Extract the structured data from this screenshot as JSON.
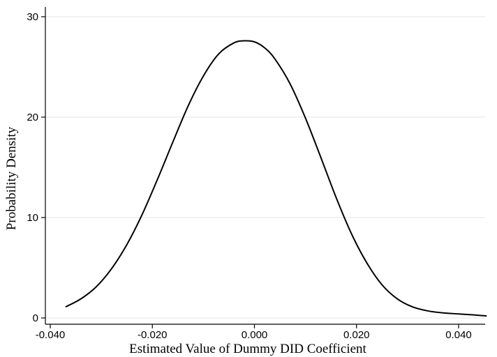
{
  "chart_data": {
    "type": "line",
    "title": "",
    "xlabel": "Estimated Value of Dummy DID Coefficient",
    "ylabel": "Probability Density",
    "xlim": [
      -0.04,
      0.046
    ],
    "ylim": [
      0,
      30
    ],
    "x_ticks": [
      -0.04,
      -0.02,
      0.0,
      0.02,
      0.04
    ],
    "x_tick_labels": [
      "-0.040",
      "-0.020",
      "0.000",
      "0.020",
      "0.040"
    ],
    "y_ticks": [
      0,
      10,
      20,
      30
    ],
    "y_tick_labels": [
      "0",
      "10",
      "20",
      "30"
    ],
    "grid": "horizontal",
    "legend": "none",
    "colors": {
      "line": "#000000",
      "grid": "#e6e6e6",
      "axis": "#000000"
    },
    "series": [
      {
        "x": [
          -0.037,
          -0.034,
          -0.031,
          -0.028,
          -0.025,
          -0.022,
          -0.019,
          -0.016,
          -0.013,
          -0.01,
          -0.007,
          -0.004,
          -0.002,
          0.0,
          0.002,
          0.004,
          0.007,
          0.01,
          0.013,
          0.016,
          0.019,
          0.022,
          0.025,
          0.028,
          0.031,
          0.034,
          0.037,
          0.04,
          0.043,
          0.0455
        ],
        "y": [
          1.1,
          1.9,
          3.1,
          4.9,
          7.3,
          10.3,
          13.8,
          17.5,
          21.1,
          24.1,
          26.3,
          27.4,
          27.6,
          27.5,
          26.9,
          25.8,
          23.3,
          19.9,
          16.0,
          12.0,
          8.4,
          5.5,
          3.3,
          1.9,
          1.1,
          0.7,
          0.5,
          0.4,
          0.3,
          0.2
        ]
      }
    ]
  }
}
